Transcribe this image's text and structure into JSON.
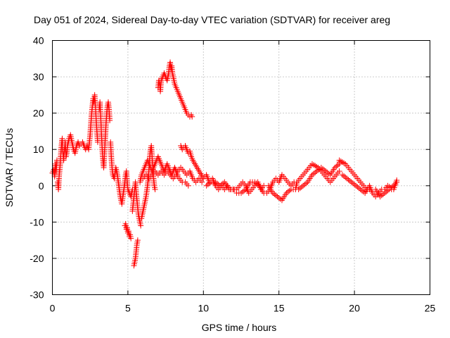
{
  "chart_data": {
    "type": "scatter",
    "title": "Day 051 of 2024, Sidereal Day-to-day VTEC variation (SDTVAR) for receiver areg",
    "xlabel": "GPS time / hours",
    "ylabel": "SDTVAR / TECUs",
    "xlim": [
      0,
      25
    ],
    "ylim": [
      -30,
      40
    ],
    "xticks": [
      "0",
      "5",
      "10",
      "15",
      "20",
      "25"
    ],
    "yticks": [
      "40",
      "30",
      "20",
      "10",
      "0",
      "-10",
      "-20",
      "-30"
    ],
    "grid": true,
    "marker": "+",
    "color": "#ff0000",
    "series": [
      {
        "name": "SDTVAR",
        "points": [
          [
            0.0,
            3.5
          ],
          [
            0.1,
            4.5
          ],
          [
            0.15,
            2.5
          ],
          [
            0.2,
            6
          ],
          [
            0.25,
            4
          ],
          [
            0.3,
            7
          ],
          [
            0.35,
            1
          ],
          [
            0.4,
            -1
          ],
          [
            0.45,
            3
          ],
          [
            0.5,
            5
          ],
          [
            0.55,
            8
          ],
          [
            0.6,
            11
          ],
          [
            0.65,
            13
          ],
          [
            0.7,
            9
          ],
          [
            0.75,
            7
          ],
          [
            0.8,
            10
          ],
          [
            0.85,
            12
          ],
          [
            0.9,
            8
          ],
          [
            0.95,
            9
          ],
          [
            1.0,
            11
          ],
          [
            1.1,
            13
          ],
          [
            1.2,
            14
          ],
          [
            1.3,
            12
          ],
          [
            1.4,
            10
          ],
          [
            1.5,
            9
          ],
          [
            1.6,
            11
          ],
          [
            1.7,
            12
          ],
          [
            1.8,
            11
          ],
          [
            2.0,
            12
          ],
          [
            2.1,
            11
          ],
          [
            2.2,
            10
          ],
          [
            2.3,
            11
          ],
          [
            2.4,
            10
          ],
          [
            2.5,
            14
          ],
          [
            2.55,
            17
          ],
          [
            2.6,
            20
          ],
          [
            2.65,
            22
          ],
          [
            2.7,
            24
          ],
          [
            2.75,
            23
          ],
          [
            2.8,
            25
          ],
          [
            2.85,
            22
          ],
          [
            2.9,
            18
          ],
          [
            2.95,
            15
          ],
          [
            3.0,
            12
          ],
          [
            3.1,
            21
          ],
          [
            3.15,
            23
          ],
          [
            3.2,
            19
          ],
          [
            3.25,
            14
          ],
          [
            3.3,
            10
          ],
          [
            3.35,
            7
          ],
          [
            3.4,
            5
          ],
          [
            3.45,
            9
          ],
          [
            3.5,
            13
          ],
          [
            3.55,
            17
          ],
          [
            3.6,
            20
          ],
          [
            3.65,
            22
          ],
          [
            3.7,
            23
          ],
          [
            3.75,
            21
          ],
          [
            3.8,
            18
          ],
          [
            3.85,
            12
          ],
          [
            3.9,
            8
          ],
          [
            3.95,
            5
          ],
          [
            4.0,
            3
          ],
          [
            4.1,
            2
          ],
          [
            4.2,
            5
          ],
          [
            4.3,
            3
          ],
          [
            4.4,
            0
          ],
          [
            4.5,
            -3
          ],
          [
            4.6,
            -5
          ],
          [
            4.7,
            -2
          ],
          [
            4.8,
            1
          ],
          [
            4.85,
            3
          ],
          [
            4.9,
            4
          ],
          [
            4.95,
            1
          ],
          [
            5.0,
            -1
          ],
          [
            5.1,
            -2
          ],
          [
            5.2,
            -3
          ],
          [
            5.3,
            -1
          ],
          [
            4.8,
            -11
          ],
          [
            4.85,
            -10.5
          ],
          [
            4.9,
            -12
          ],
          [
            4.95,
            -11.5
          ],
          [
            5.0,
            -13
          ],
          [
            5.05,
            -12.5
          ],
          [
            5.1,
            -14
          ],
          [
            5.15,
            -13.5
          ],
          [
            5.2,
            -14.5
          ],
          [
            5.3,
            -7
          ],
          [
            5.35,
            -5
          ],
          [
            5.4,
            -3
          ],
          [
            5.45,
            -1
          ],
          [
            5.5,
            1
          ],
          [
            5.55,
            -2
          ],
          [
            5.6,
            -4
          ],
          [
            5.65,
            -6
          ],
          [
            5.7,
            -8
          ],
          [
            5.75,
            -9
          ],
          [
            5.8,
            -10
          ],
          [
            5.85,
            -11
          ],
          [
            5.4,
            -22
          ],
          [
            5.45,
            -21
          ],
          [
            5.5,
            -20
          ],
          [
            5.55,
            -18
          ],
          [
            5.6,
            -16
          ],
          [
            5.65,
            -15
          ],
          [
            5.9,
            -9
          ],
          [
            6.0,
            -7
          ],
          [
            6.1,
            -5
          ],
          [
            6.2,
            -3
          ],
          [
            6.3,
            0
          ],
          [
            6.35,
            2
          ],
          [
            6.4,
            5
          ],
          [
            6.45,
            8
          ],
          [
            6.5,
            10
          ],
          [
            6.55,
            11
          ],
          [
            6.6,
            8
          ],
          [
            6.65,
            5
          ],
          [
            6.7,
            2
          ],
          [
            6.75,
            0
          ],
          [
            6.8,
            -1
          ],
          [
            5.8,
            1
          ],
          [
            5.9,
            3
          ],
          [
            6.0,
            4
          ],
          [
            6.1,
            5
          ],
          [
            6.2,
            6
          ],
          [
            6.3,
            7
          ],
          [
            6.4,
            6
          ],
          [
            6.5,
            5
          ],
          [
            6.6,
            4
          ],
          [
            6.7,
            5
          ],
          [
            6.8,
            6
          ],
          [
            6.9,
            7
          ],
          [
            7.0,
            8
          ],
          [
            7.1,
            7
          ],
          [
            7.2,
            6
          ],
          [
            7.3,
            5
          ],
          [
            7.4,
            4
          ],
          [
            7.5,
            5
          ],
          [
            7.6,
            6
          ],
          [
            7.7,
            5
          ],
          [
            7.8,
            4
          ],
          [
            7.9,
            3
          ],
          [
            8.0,
            4
          ],
          [
            8.1,
            5
          ],
          [
            8.2,
            4
          ],
          [
            8.3,
            3
          ],
          [
            6.0,
            2
          ],
          [
            6.2,
            3
          ],
          [
            6.4,
            2
          ],
          [
            6.6,
            3
          ],
          [
            6.8,
            4
          ],
          [
            7.0,
            3
          ],
          [
            7.2,
            4
          ],
          [
            7.4,
            3
          ],
          [
            7.6,
            4
          ],
          [
            7.8,
            3
          ],
          [
            8.0,
            2
          ],
          [
            8.2,
            3
          ],
          [
            8.4,
            2
          ],
          [
            8.6,
            1
          ],
          [
            8.8,
            1
          ],
          [
            9.0,
            0
          ],
          [
            8.3,
            4
          ],
          [
            8.5,
            5
          ],
          [
            8.7,
            4
          ],
          [
            8.9,
            3
          ],
          [
            9.1,
            4
          ],
          [
            9.3,
            2
          ],
          [
            9.5,
            1
          ],
          [
            9.7,
            2
          ],
          [
            9.9,
            1
          ],
          [
            7.0,
            27
          ],
          [
            7.05,
            29
          ],
          [
            7.1,
            28
          ],
          [
            7.15,
            26
          ],
          [
            7.2,
            29
          ],
          [
            7.3,
            30
          ],
          [
            7.4,
            31
          ],
          [
            7.5,
            30
          ],
          [
            7.6,
            29
          ],
          [
            7.7,
            31
          ],
          [
            7.75,
            33
          ],
          [
            7.8,
            34
          ],
          [
            7.85,
            32
          ],
          [
            7.9,
            33
          ],
          [
            7.95,
            31
          ],
          [
            8.0,
            30
          ],
          [
            8.1,
            28
          ],
          [
            8.2,
            27
          ],
          [
            8.3,
            26
          ],
          [
            8.4,
            25
          ],
          [
            8.5,
            24
          ],
          [
            8.6,
            23
          ],
          [
            8.7,
            22
          ],
          [
            8.8,
            21
          ],
          [
            8.9,
            20
          ],
          [
            9.0,
            19.5
          ],
          [
            9.1,
            19
          ],
          [
            9.2,
            19.5
          ],
          [
            9.25,
            19
          ],
          [
            8.5,
            11
          ],
          [
            8.6,
            10
          ],
          [
            8.7,
            10.5
          ],
          [
            8.8,
            11
          ],
          [
            8.9,
            10
          ],
          [
            9.0,
            9
          ],
          [
            9.1,
            9.5
          ],
          [
            9.2,
            8
          ],
          [
            9.3,
            7
          ],
          [
            10.0,
            2
          ],
          [
            10.2,
            3
          ],
          [
            10.4,
            1
          ],
          [
            10.6,
            2
          ],
          [
            10.8,
            0
          ],
          [
            11.0,
            -1
          ],
          [
            11.2,
            0
          ],
          [
            11.4,
            -1
          ],
          [
            11.6,
            0
          ],
          [
            11.8,
            -1
          ],
          [
            12.0,
            -1
          ],
          [
            10.2,
            0
          ],
          [
            10.5,
            1
          ],
          [
            10.8,
            1
          ],
          [
            11.1,
            0
          ],
          [
            11.4,
            1
          ],
          [
            11.7,
            -1
          ],
          [
            12.2,
            -1
          ],
          [
            12.4,
            0
          ],
          [
            12.6,
            1
          ],
          [
            12.8,
            0
          ],
          [
            13.0,
            -2
          ],
          [
            13.2,
            -1
          ],
          [
            13.4,
            0
          ],
          [
            13.6,
            1
          ],
          [
            13.8,
            -1
          ],
          [
            14.0,
            0
          ],
          [
            12.2,
            -2
          ],
          [
            12.5,
            -2
          ],
          [
            12.8,
            -1
          ],
          [
            13.1,
            1
          ],
          [
            13.4,
            1
          ],
          [
            13.7,
            0
          ],
          [
            14.0,
            -2
          ],
          [
            14.2,
            -2
          ],
          [
            14.4,
            -1
          ],
          [
            14.6,
            1
          ],
          [
            14.8,
            2
          ],
          [
            15.0,
            1
          ],
          [
            15.2,
            3
          ],
          [
            15.4,
            2
          ],
          [
            15.6,
            1
          ],
          [
            15.8,
            0
          ],
          [
            16.0,
            1
          ],
          [
            14.3,
            0
          ],
          [
            14.6,
            -2
          ],
          [
            14.9,
            -3
          ],
          [
            15.2,
            -4
          ],
          [
            15.5,
            -2
          ],
          [
            15.8,
            -1
          ],
          [
            16.1,
            -1
          ],
          [
            16.2,
            1
          ],
          [
            16.4,
            2
          ],
          [
            16.6,
            3
          ],
          [
            16.8,
            4
          ],
          [
            17.0,
            5
          ],
          [
            17.2,
            6
          ],
          [
            17.4,
            5.5
          ],
          [
            17.6,
            5
          ],
          [
            17.8,
            4
          ],
          [
            18.0,
            3
          ],
          [
            18.2,
            2
          ],
          [
            18.4,
            1
          ],
          [
            18.6,
            2
          ],
          [
            18.8,
            3
          ],
          [
            19.0,
            4
          ],
          [
            16.3,
            -1
          ],
          [
            16.6,
            0
          ],
          [
            16.9,
            1
          ],
          [
            17.2,
            3
          ],
          [
            17.5,
            4
          ],
          [
            17.8,
            5
          ],
          [
            18.1,
            4
          ],
          [
            18.4,
            3
          ],
          [
            18.7,
            5
          ],
          [
            19.0,
            6
          ],
          [
            19.0,
            7
          ],
          [
            19.2,
            6.5
          ],
          [
            19.4,
            6
          ],
          [
            19.6,
            5
          ],
          [
            19.8,
            4
          ],
          [
            20.0,
            3
          ],
          [
            20.2,
            2
          ],
          [
            20.4,
            1
          ],
          [
            20.6,
            0
          ],
          [
            20.8,
            -1
          ],
          [
            21.0,
            -1
          ],
          [
            19.2,
            3
          ],
          [
            19.5,
            2
          ],
          [
            19.8,
            1
          ],
          [
            20.1,
            0
          ],
          [
            20.4,
            -1
          ],
          [
            20.7,
            -2
          ],
          [
            21.0,
            0
          ],
          [
            21.2,
            -2
          ],
          [
            21.4,
            -3
          ],
          [
            21.6,
            -2
          ],
          [
            21.8,
            -1
          ],
          [
            22.0,
            -1
          ],
          [
            22.2,
            0
          ],
          [
            22.4,
            -0.5
          ],
          [
            22.6,
            0
          ],
          [
            22.8,
            1
          ],
          [
            21.4,
            -1
          ],
          [
            21.7,
            -3
          ],
          [
            22.0,
            -2
          ],
          [
            22.3,
            -1
          ],
          [
            22.6,
            -1
          ],
          [
            22.8,
            1.5
          ]
        ]
      }
    ]
  }
}
